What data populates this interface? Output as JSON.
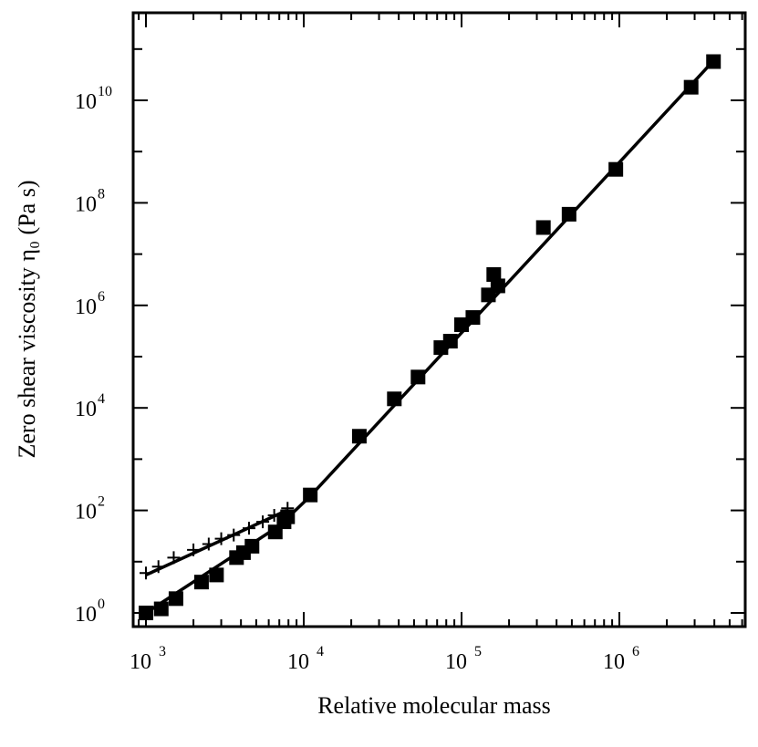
{
  "chart_data": {
    "type": "scatter",
    "title": "",
    "xlabel": "Relative molecular mass",
    "ylabel": "Zero shear viscosity η₀ (Pa s)",
    "x_scale": "log",
    "y_scale": "log",
    "xlim": [
      700,
      7000000
    ],
    "ylim": [
      0.7,
      500000000000
    ],
    "x_ticks": [
      {
        "value": 1000,
        "base": "10",
        "exp": "3"
      },
      {
        "value": 10000,
        "base": "10",
        "exp": "4"
      },
      {
        "value": 100000,
        "base": "10",
        "exp": "5"
      },
      {
        "value": 1000000,
        "base": "10",
        "exp": "6"
      }
    ],
    "y_ticks": [
      {
        "value": 1,
        "base": "10",
        "exp": "0"
      },
      {
        "value": 100,
        "base": "10",
        "exp": "2"
      },
      {
        "value": 10000,
        "base": "10",
        "exp": "4"
      },
      {
        "value": 1000000,
        "base": "10",
        "exp": "6"
      },
      {
        "value": 100000000,
        "base": "10",
        "exp": "8"
      },
      {
        "value": 10000000000,
        "base": "10",
        "exp": "10"
      }
    ],
    "grid": false,
    "series": [
      {
        "marker": "filled-square",
        "points": [
          {
            "x": 1000,
            "y": 1.0
          },
          {
            "x": 1250,
            "y": 1.2
          },
          {
            "x": 1550,
            "y": 1.9
          },
          {
            "x": 2250,
            "y": 4.0
          },
          {
            "x": 2800,
            "y": 5.5
          },
          {
            "x": 3750,
            "y": 12
          },
          {
            "x": 4150,
            "y": 15
          },
          {
            "x": 4700,
            "y": 20
          },
          {
            "x": 6600,
            "y": 38
          },
          {
            "x": 7500,
            "y": 60
          },
          {
            "x": 7900,
            "y": 75
          },
          {
            "x": 11000,
            "y": 200
          },
          {
            "x": 22500,
            "y": 2800
          },
          {
            "x": 37500,
            "y": 15000
          },
          {
            "x": 53000,
            "y": 40000
          },
          {
            "x": 74000,
            "y": 150000
          },
          {
            "x": 85000,
            "y": 200000
          },
          {
            "x": 100000,
            "y": 420000
          },
          {
            "x": 118000,
            "y": 580000
          },
          {
            "x": 148000,
            "y": 1600000
          },
          {
            "x": 160000,
            "y": 4000000
          },
          {
            "x": 170000,
            "y": 2400000
          },
          {
            "x": 330000,
            "y": 33000000
          },
          {
            "x": 480000,
            "y": 60000000
          },
          {
            "x": 950000,
            "y": 450000000
          },
          {
            "x": 2850000,
            "y": 18000000000
          },
          {
            "x": 3950000,
            "y": 57000000000
          }
        ]
      },
      {
        "marker": "plus",
        "points": [
          {
            "x": 1000,
            "y": 6
          },
          {
            "x": 1200,
            "y": 8
          },
          {
            "x": 1500,
            "y": 12
          },
          {
            "x": 2000,
            "y": 17
          },
          {
            "x": 2500,
            "y": 22
          },
          {
            "x": 3000,
            "y": 28
          },
          {
            "x": 3600,
            "y": 33
          },
          {
            "x": 4500,
            "y": 45
          },
          {
            "x": 5500,
            "y": 60
          },
          {
            "x": 6500,
            "y": 80
          },
          {
            "x": 7900,
            "y": 110
          }
        ]
      }
    ],
    "fit_lines": [
      {
        "points": [
          {
            "x": 1000,
            "y": 1.0
          },
          {
            "x": 7000,
            "y": 50
          },
          {
            "x": 11000,
            "y": 190
          },
          {
            "x": 4000000,
            "y": 62000000000
          }
        ]
      },
      {
        "points": [
          {
            "x": 1000,
            "y": 5.5
          },
          {
            "x": 7800,
            "y": 100
          }
        ]
      }
    ]
  }
}
